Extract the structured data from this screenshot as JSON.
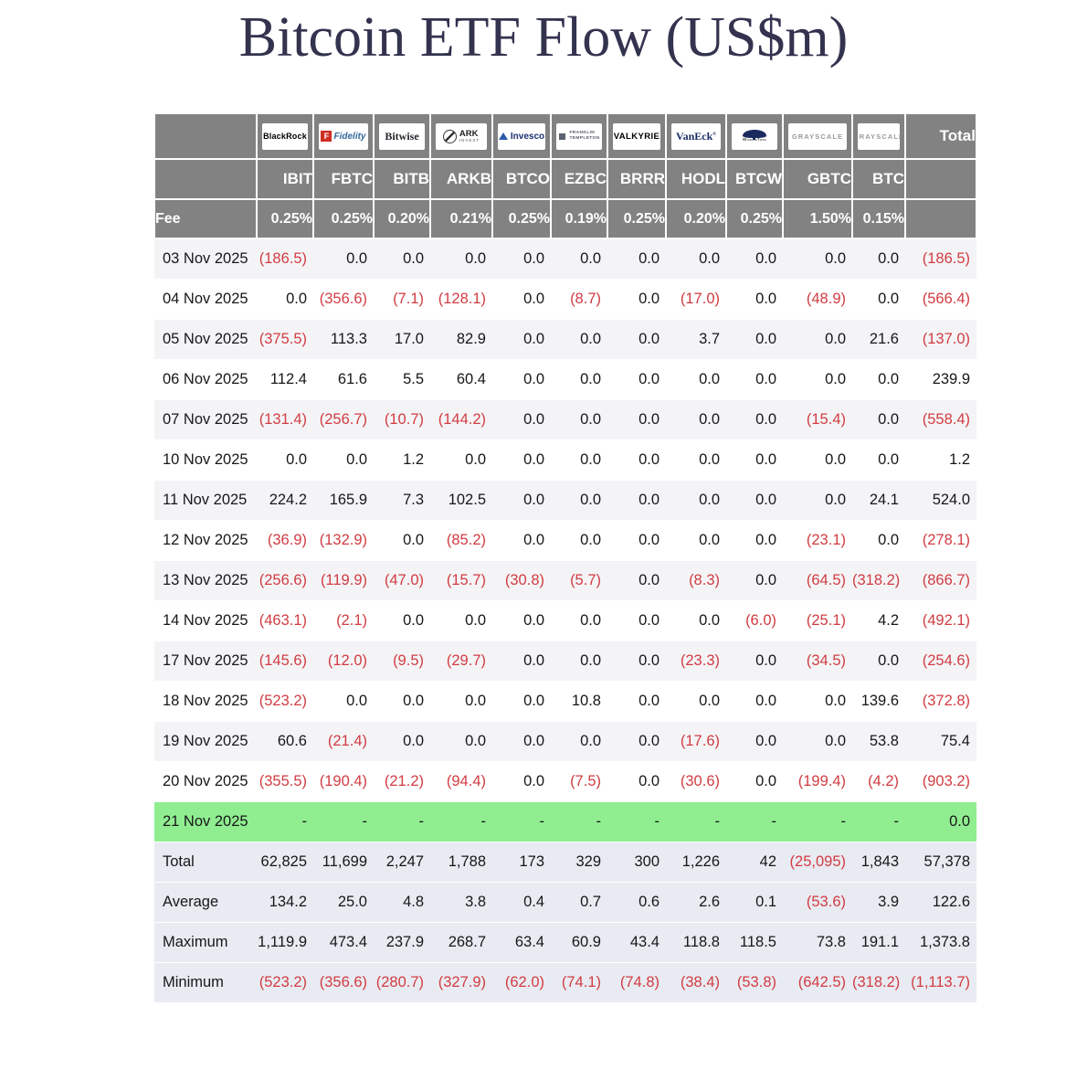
{
  "title": "Bitcoin ETF Flow (US$m)",
  "table": {
    "fee_label": "Fee",
    "total_label": "Total",
    "providers": [
      {
        "id": "blackrock",
        "name": "BlackRock",
        "logo_text": "BlackRock",
        "ticker": "IBIT",
        "fee": "0.25%"
      },
      {
        "id": "fidelity",
        "name": "Fidelity",
        "logo_icon": "F",
        "logo_text": "Fidelity",
        "ticker": "FBTC",
        "fee": "0.25%"
      },
      {
        "id": "bitwise",
        "name": "Bitwise",
        "logo_text": "Bitwise",
        "ticker": "BITB",
        "fee": "0.20%"
      },
      {
        "id": "ark",
        "name": "ARK Invest",
        "logo_text": "ARK",
        "logo_subtext": "INVEST",
        "ticker": "ARKB",
        "fee": "0.21%"
      },
      {
        "id": "invesco",
        "name": "Invesco",
        "logo_text": "Invesco",
        "ticker": "BTCO",
        "fee": "0.25%"
      },
      {
        "id": "franklin",
        "name": "Franklin Templeton",
        "logo_text": "FRANKLIN",
        "logo_subtext": "TEMPLETON",
        "ticker": "EZBC",
        "fee": "0.19%"
      },
      {
        "id": "valkyrie",
        "name": "Valkyrie",
        "logo_text": "VALKYRIE",
        "ticker": "BRRR",
        "fee": "0.25%"
      },
      {
        "id": "vaneck",
        "name": "VanEck",
        "logo_text": "VanEck",
        "ticker": "HODL",
        "fee": "0.20%"
      },
      {
        "id": "wisdomtree",
        "name": "WisdomTree",
        "logo_text": "WisdomTree",
        "ticker": "BTCW",
        "fee": "0.25%"
      },
      {
        "id": "grayscale",
        "name": "Grayscale",
        "logo_text": "GRAYSCALE",
        "ticker": "GBTC",
        "fee": "1.50%"
      },
      {
        "id": "grayscale2",
        "name": "Grayscale",
        "logo_text": "GRAYSCALE",
        "ticker": "BTC",
        "fee": "0.15%"
      }
    ],
    "rows": [
      {
        "date": "03 Nov 2025",
        "values": [
          "(186.5)",
          "0.0",
          "0.0",
          "0.0",
          "0.0",
          "0.0",
          "0.0",
          "0.0",
          "0.0",
          "0.0",
          "0.0"
        ],
        "total": "(186.5)"
      },
      {
        "date": "04 Nov 2025",
        "values": [
          "0.0",
          "(356.6)",
          "(7.1)",
          "(128.1)",
          "0.0",
          "(8.7)",
          "0.0",
          "(17.0)",
          "0.0",
          "(48.9)",
          "0.0"
        ],
        "total": "(566.4)"
      },
      {
        "date": "05 Nov 2025",
        "values": [
          "(375.5)",
          "113.3",
          "17.0",
          "82.9",
          "0.0",
          "0.0",
          "0.0",
          "3.7",
          "0.0",
          "0.0",
          "21.6"
        ],
        "total": "(137.0)"
      },
      {
        "date": "06 Nov 2025",
        "values": [
          "112.4",
          "61.6",
          "5.5",
          "60.4",
          "0.0",
          "0.0",
          "0.0",
          "0.0",
          "0.0",
          "0.0",
          "0.0"
        ],
        "total": "239.9"
      },
      {
        "date": "07 Nov 2025",
        "values": [
          "(131.4)",
          "(256.7)",
          "(10.7)",
          "(144.2)",
          "0.0",
          "0.0",
          "0.0",
          "0.0",
          "0.0",
          "(15.4)",
          "0.0"
        ],
        "total": "(558.4)"
      },
      {
        "date": "10 Nov 2025",
        "values": [
          "0.0",
          "0.0",
          "1.2",
          "0.0",
          "0.0",
          "0.0",
          "0.0",
          "0.0",
          "0.0",
          "0.0",
          "0.0"
        ],
        "total": "1.2"
      },
      {
        "date": "11 Nov 2025",
        "values": [
          "224.2",
          "165.9",
          "7.3",
          "102.5",
          "0.0",
          "0.0",
          "0.0",
          "0.0",
          "0.0",
          "0.0",
          "24.1"
        ],
        "total": "524.0"
      },
      {
        "date": "12 Nov 2025",
        "values": [
          "(36.9)",
          "(132.9)",
          "0.0",
          "(85.2)",
          "0.0",
          "0.0",
          "0.0",
          "0.0",
          "0.0",
          "(23.1)",
          "0.0"
        ],
        "total": "(278.1)"
      },
      {
        "date": "13 Nov 2025",
        "values": [
          "(256.6)",
          "(119.9)",
          "(47.0)",
          "(15.7)",
          "(30.8)",
          "(5.7)",
          "0.0",
          "(8.3)",
          "0.0",
          "(64.5)",
          "(318.2)"
        ],
        "total": "(866.7)"
      },
      {
        "date": "14 Nov 2025",
        "values": [
          "(463.1)",
          "(2.1)",
          "0.0",
          "0.0",
          "0.0",
          "0.0",
          "0.0",
          "0.0",
          "(6.0)",
          "(25.1)",
          "4.2"
        ],
        "total": "(492.1)"
      },
      {
        "date": "17 Nov 2025",
        "values": [
          "(145.6)",
          "(12.0)",
          "(9.5)",
          "(29.7)",
          "0.0",
          "0.0",
          "0.0",
          "(23.3)",
          "0.0",
          "(34.5)",
          "0.0"
        ],
        "total": "(254.6)"
      },
      {
        "date": "18 Nov 2025",
        "values": [
          "(523.2)",
          "0.0",
          "0.0",
          "0.0",
          "0.0",
          "10.8",
          "0.0",
          "0.0",
          "0.0",
          "0.0",
          "139.6"
        ],
        "total": "(372.8)"
      },
      {
        "date": "19 Nov 2025",
        "values": [
          "60.6",
          "(21.4)",
          "0.0",
          "0.0",
          "0.0",
          "0.0",
          "0.0",
          "(17.6)",
          "0.0",
          "0.0",
          "53.8"
        ],
        "total": "75.4"
      },
      {
        "date": "20 Nov 2025",
        "values": [
          "(355.5)",
          "(190.4)",
          "(21.2)",
          "(94.4)",
          "0.0",
          "(7.5)",
          "0.0",
          "(30.6)",
          "0.0",
          "(199.4)",
          "(4.2)"
        ],
        "total": "(903.2)"
      },
      {
        "date": "21 Nov 2025",
        "highlight": true,
        "values": [
          "-",
          "-",
          "-",
          "-",
          "-",
          "-",
          "-",
          "-",
          "-",
          "-",
          "-"
        ],
        "total": "0.0"
      }
    ],
    "summary": [
      {
        "label": "Total",
        "values": [
          "62,825",
          "11,699",
          "2,247",
          "1,788",
          "173",
          "329",
          "300",
          "1,226",
          "42",
          "(25,095)",
          "1,843"
        ],
        "total": "57,378"
      },
      {
        "label": "Average",
        "values": [
          "134.2",
          "25.0",
          "4.8",
          "3.8",
          "0.4",
          "0.7",
          "0.6",
          "2.6",
          "0.1",
          "(53.6)",
          "3.9"
        ],
        "total": "122.6"
      },
      {
        "label": "Maximum",
        "values": [
          "1,119.9",
          "473.4",
          "237.9",
          "268.7",
          "63.4",
          "60.9",
          "43.4",
          "118.8",
          "118.5",
          "73.8",
          "191.1"
        ],
        "total": "1,373.8"
      },
      {
        "label": "Minimum",
        "values": [
          "(523.2)",
          "(356.6)",
          "(280.7)",
          "(327.9)",
          "(62.0)",
          "(74.1)",
          "(74.8)",
          "(38.4)",
          "(53.8)",
          "(642.5)",
          "(318.2)"
        ],
        "total": "(1,113.7)"
      }
    ]
  },
  "colors": {
    "header_bg": "#828282",
    "negative_text": "#d13c42",
    "positive_text": "#17171a",
    "highlight_row_bg": "#90ee90",
    "summary_row_bg": "#e9ebf2",
    "stripe_bg": "#f4f4f6",
    "title_text": "#33334f"
  }
}
